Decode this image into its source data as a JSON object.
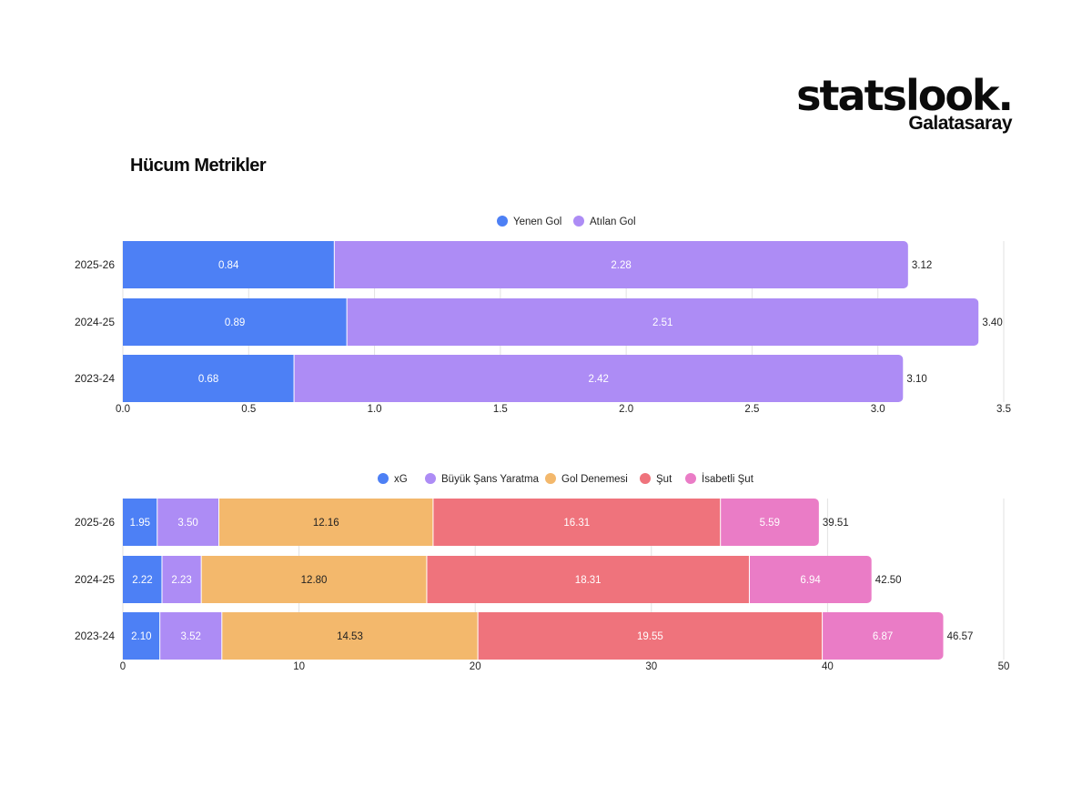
{
  "brand": {
    "logo": "statslook.",
    "team": "Galatasaray"
  },
  "page_title": "Hücum Metrikler",
  "chart_data": [
    {
      "type": "bar",
      "orientation": "horizontal",
      "stacked": true,
      "categories": [
        "2025-26",
        "2024-25",
        "2023-24"
      ],
      "series": [
        {
          "name": "Yenen Gol",
          "color": "#4d80f5",
          "values": [
            0.84,
            0.89,
            0.68
          ]
        },
        {
          "name": "Atılan Gol",
          "color": "#ad8cf5",
          "values": [
            2.28,
            2.51,
            2.42
          ]
        }
      ],
      "totals": [
        3.12,
        3.4,
        3.1
      ],
      "value_labels": [
        [
          "0.84",
          "2.28"
        ],
        [
          "0.89",
          "2.51"
        ],
        [
          "0.68",
          "2.42"
        ]
      ],
      "total_labels": [
        "3.12",
        "3.40",
        "3.10"
      ],
      "xlim": [
        0,
        3.5
      ],
      "xticks": [
        0,
        0.5,
        1.0,
        1.5,
        2.0,
        2.5,
        3.0,
        3.5
      ],
      "xtick_labels": [
        "0.0",
        "0.5",
        "1.0",
        "1.5",
        "2.0",
        "2.5",
        "3.0",
        "3.5"
      ],
      "legend_position": "top-center",
      "grid": true
    },
    {
      "type": "bar",
      "orientation": "horizontal",
      "stacked": true,
      "categories": [
        "2025-26",
        "2024-25",
        "2023-24"
      ],
      "series": [
        {
          "name": "xG",
          "color": "#4d80f5",
          "values": [
            1.95,
            2.22,
            2.1
          ]
        },
        {
          "name": "Büyük Şans Yaratma",
          "color": "#ad8cf5",
          "values": [
            3.5,
            2.23,
            3.52
          ]
        },
        {
          "name": "Gol Denemesi",
          "color": "#f3b86c",
          "values": [
            12.16,
            12.8,
            14.53
          ]
        },
        {
          "name": "Şut",
          "color": "#ef737c",
          "values": [
            16.31,
            18.31,
            19.55
          ]
        },
        {
          "name": "İsabetli Şut",
          "color": "#ea7cc6",
          "values": [
            5.59,
            6.94,
            6.87
          ]
        }
      ],
      "totals": [
        39.51,
        42.5,
        46.57
      ],
      "value_labels": [
        [
          "1.95",
          "3.50",
          "12.16",
          "16.31",
          "5.59"
        ],
        [
          "2.22",
          "2.23",
          "12.80",
          "18.31",
          "6.94"
        ],
        [
          "2.10",
          "3.52",
          "14.53",
          "19.55",
          "6.87"
        ]
      ],
      "total_labels": [
        "39.51",
        "42.50",
        "46.57"
      ],
      "xlim": [
        0,
        50
      ],
      "xticks": [
        0,
        10,
        20,
        30,
        40,
        50
      ],
      "xtick_labels": [
        "0",
        "10",
        "20",
        "30",
        "40",
        "50"
      ],
      "legend_position": "top-center",
      "grid": true
    }
  ]
}
